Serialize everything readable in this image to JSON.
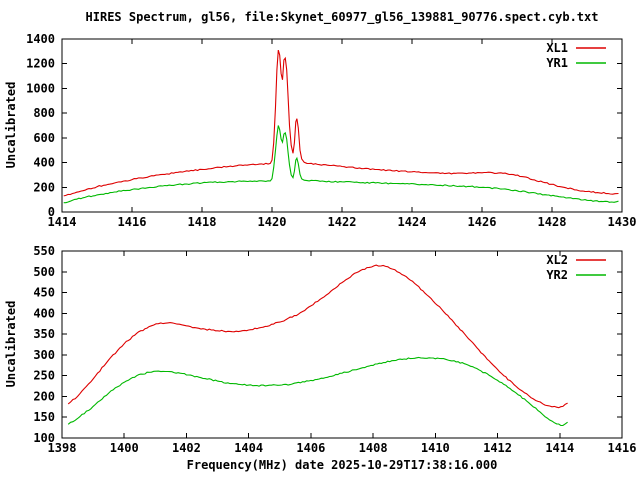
{
  "title": "HIRES Spectrum, gl56, file:Skynet_60977_gl56_139881_90776.spect.cyb.txt",
  "xlabel": "Frequency(MHz) date 2025-10-29T17:38:16.000",
  "colors": {
    "background": "#ffffff",
    "frame": "#000000",
    "xl": "#dd0000",
    "yr": "#00b800"
  },
  "chart_data": [
    {
      "type": "line",
      "name": "top-spectrum-panel",
      "ylabel": "Uncalibrated",
      "xlim": [
        1414,
        1430
      ],
      "ylim": [
        0,
        1400
      ],
      "xticks": [
        1414,
        1416,
        1418,
        1420,
        1422,
        1424,
        1426,
        1428,
        1430
      ],
      "yticks": [
        0,
        200,
        400,
        600,
        800,
        1000,
        1200,
        1400
      ],
      "grid": false,
      "legend_position": "top-right",
      "noise": 0.6,
      "series": [
        {
          "name": "XL1",
          "color": "#dd0000",
          "points": [
            [
              1414.05,
              130
            ],
            [
              1414.3,
              150
            ],
            [
              1414.6,
              172
            ],
            [
              1415.0,
              205
            ],
            [
              1415.5,
              235
            ],
            [
              1416.0,
              262
            ],
            [
              1416.5,
              288
            ],
            [
              1417.0,
              308
            ],
            [
              1417.5,
              328
            ],
            [
              1418.0,
              345
            ],
            [
              1418.5,
              362
            ],
            [
              1419.0,
              375
            ],
            [
              1419.4,
              384
            ],
            [
              1419.7,
              389
            ],
            [
              1419.95,
              393
            ],
            [
              1420.0,
              420
            ],
            [
              1420.05,
              560
            ],
            [
              1420.1,
              850
            ],
            [
              1420.14,
              1150
            ],
            [
              1420.18,
              1310
            ],
            [
              1420.22,
              1270
            ],
            [
              1420.26,
              1120
            ],
            [
              1420.3,
              1070
            ],
            [
              1420.34,
              1230
            ],
            [
              1420.38,
              1245
            ],
            [
              1420.42,
              1150
            ],
            [
              1420.46,
              930
            ],
            [
              1420.5,
              700
            ],
            [
              1420.55,
              540
            ],
            [
              1420.6,
              475
            ],
            [
              1420.64,
              560
            ],
            [
              1420.68,
              730
            ],
            [
              1420.71,
              755
            ],
            [
              1420.75,
              680
            ],
            [
              1420.8,
              500
            ],
            [
              1420.85,
              430
            ],
            [
              1420.92,
              402
            ],
            [
              1421.0,
              393
            ],
            [
              1421.3,
              385
            ],
            [
              1421.7,
              376
            ],
            [
              1422.0,
              368
            ],
            [
              1422.5,
              356
            ],
            [
              1423.0,
              344
            ],
            [
              1423.5,
              333
            ],
            [
              1424.0,
              325
            ],
            [
              1424.5,
              317
            ],
            [
              1425.0,
              313
            ],
            [
              1425.5,
              313
            ],
            [
              1426.0,
              317
            ],
            [
              1426.3,
              318
            ],
            [
              1426.6,
              313
            ],
            [
              1426.9,
              303
            ],
            [
              1427.2,
              285
            ],
            [
              1427.5,
              260
            ],
            [
              1427.8,
              237
            ],
            [
              1428.1,
              215
            ],
            [
              1428.4,
              196
            ],
            [
              1428.7,
              179
            ],
            [
              1429.0,
              166
            ],
            [
              1429.3,
              157
            ],
            [
              1429.6,
              150
            ],
            [
              1429.8,
              148
            ],
            [
              1429.9,
              150
            ]
          ]
        },
        {
          "name": "YR1",
          "color": "#00b800",
          "points": [
            [
              1414.05,
              75
            ],
            [
              1414.3,
              95
            ],
            [
              1414.6,
              115
            ],
            [
              1415.0,
              138
            ],
            [
              1415.5,
              162
            ],
            [
              1416.0,
              182
            ],
            [
              1416.5,
              199
            ],
            [
              1417.0,
              213
            ],
            [
              1417.5,
              226
            ],
            [
              1418.0,
              235
            ],
            [
              1418.5,
              242
            ],
            [
              1419.0,
              247
            ],
            [
              1419.5,
              250
            ],
            [
              1419.95,
              252
            ],
            [
              1420.0,
              270
            ],
            [
              1420.05,
              360
            ],
            [
              1420.1,
              500
            ],
            [
              1420.14,
              620
            ],
            [
              1420.18,
              700
            ],
            [
              1420.22,
              665
            ],
            [
              1420.26,
              590
            ],
            [
              1420.3,
              565
            ],
            [
              1420.34,
              630
            ],
            [
              1420.38,
              640
            ],
            [
              1420.42,
              590
            ],
            [
              1420.46,
              480
            ],
            [
              1420.5,
              380
            ],
            [
              1420.55,
              300
            ],
            [
              1420.6,
              278
            ],
            [
              1420.64,
              330
            ],
            [
              1420.68,
              420
            ],
            [
              1420.71,
              435
            ],
            [
              1420.75,
              390
            ],
            [
              1420.8,
              305
            ],
            [
              1420.85,
              268
            ],
            [
              1420.92,
              257
            ],
            [
              1421.0,
              254
            ],
            [
              1421.5,
              248
            ],
            [
              1422.0,
              244
            ],
            [
              1422.6,
              238
            ],
            [
              1423.2,
              233
            ],
            [
              1423.8,
              228
            ],
            [
              1424.4,
              222
            ],
            [
              1425.0,
              215
            ],
            [
              1425.6,
              207
            ],
            [
              1426.1,
              198
            ],
            [
              1426.6,
              186
            ],
            [
              1427.0,
              172
            ],
            [
              1427.4,
              156
            ],
            [
              1427.8,
              140
            ],
            [
              1428.2,
              124
            ],
            [
              1428.6,
              108
            ],
            [
              1429.0,
              95
            ],
            [
              1429.4,
              86
            ],
            [
              1429.7,
              81
            ],
            [
              1429.85,
              83
            ],
            [
              1429.9,
              88
            ]
          ]
        }
      ]
    },
    {
      "type": "line",
      "name": "bottom-spectrum-panel",
      "ylabel": "Uncalibrated",
      "xlim": [
        1398,
        1416
      ],
      "ylim": [
        100,
        550
      ],
      "xticks": [
        1398,
        1400,
        1402,
        1404,
        1406,
        1408,
        1410,
        1412,
        1414,
        1416
      ],
      "yticks": [
        100,
        150,
        200,
        250,
        300,
        350,
        400,
        450,
        500,
        550
      ],
      "grid": false,
      "legend_position": "top-right",
      "noise": 0.7,
      "series": [
        {
          "name": "XL2",
          "color": "#dd0000",
          "points": [
            [
              1398.2,
              182
            ],
            [
              1398.5,
              200
            ],
            [
              1399.0,
              242
            ],
            [
              1399.5,
              288
            ],
            [
              1400.0,
              327
            ],
            [
              1400.4,
              352
            ],
            [
              1400.8,
              368
            ],
            [
              1401.1,
              375
            ],
            [
              1401.4,
              377
            ],
            [
              1401.7,
              374
            ],
            [
              1402.0,
              370
            ],
            [
              1402.4,
              364
            ],
            [
              1402.8,
              360
            ],
            [
              1403.2,
              357
            ],
            [
              1403.6,
              357
            ],
            [
              1404.0,
              360
            ],
            [
              1404.4,
              366
            ],
            [
              1404.8,
              374
            ],
            [
              1405.2,
              385
            ],
            [
              1405.6,
              398
            ],
            [
              1406.0,
              418
            ],
            [
              1406.5,
              444
            ],
            [
              1407.0,
              474
            ],
            [
              1407.4,
              496
            ],
            [
              1407.8,
              510
            ],
            [
              1408.1,
              516
            ],
            [
              1408.4,
              513
            ],
            [
              1408.7,
              505
            ],
            [
              1409.0,
              491
            ],
            [
              1409.4,
              468
            ],
            [
              1409.8,
              440
            ],
            [
              1410.2,
              410
            ],
            [
              1410.6,
              378
            ],
            [
              1411.0,
              345
            ],
            [
              1411.4,
              312
            ],
            [
              1411.8,
              280
            ],
            [
              1412.2,
              250
            ],
            [
              1412.6,
              224
            ],
            [
              1413.0,
              202
            ],
            [
              1413.3,
              188
            ],
            [
              1413.6,
              178
            ],
            [
              1413.9,
              174
            ],
            [
              1414.1,
              176
            ],
            [
              1414.25,
              184
            ]
          ]
        },
        {
          "name": "YR2",
          "color": "#00b800",
          "points": [
            [
              1398.2,
              133
            ],
            [
              1398.5,
              147
            ],
            [
              1399.0,
              176
            ],
            [
              1399.5,
              208
            ],
            [
              1400.0,
              234
            ],
            [
              1400.4,
              250
            ],
            [
              1400.8,
              258
            ],
            [
              1401.1,
              261
            ],
            [
              1401.4,
              260
            ],
            [
              1401.8,
              256
            ],
            [
              1402.2,
              250
            ],
            [
              1402.6,
              243
            ],
            [
              1403.0,
              237
            ],
            [
              1403.4,
              231
            ],
            [
              1403.8,
              228
            ],
            [
              1404.2,
              226
            ],
            [
              1404.6,
              226
            ],
            [
              1405.0,
              227
            ],
            [
              1405.4,
              230
            ],
            [
              1405.8,
              235
            ],
            [
              1406.2,
              241
            ],
            [
              1406.6,
              248
            ],
            [
              1407.0,
              256
            ],
            [
              1407.4,
              264
            ],
            [
              1407.8,
              272
            ],
            [
              1408.2,
              280
            ],
            [
              1408.6,
              286
            ],
            [
              1409.0,
              290
            ],
            [
              1409.4,
              293
            ],
            [
              1409.8,
              293
            ],
            [
              1410.2,
              291
            ],
            [
              1410.6,
              286
            ],
            [
              1411.0,
              277
            ],
            [
              1411.4,
              264
            ],
            [
              1411.8,
              248
            ],
            [
              1412.2,
              229
            ],
            [
              1412.6,
              208
            ],
            [
              1413.0,
              185
            ],
            [
              1413.3,
              166
            ],
            [
              1413.6,
              148
            ],
            [
              1413.9,
              134
            ],
            [
              1414.1,
              130
            ],
            [
              1414.25,
              138
            ]
          ]
        }
      ]
    }
  ]
}
